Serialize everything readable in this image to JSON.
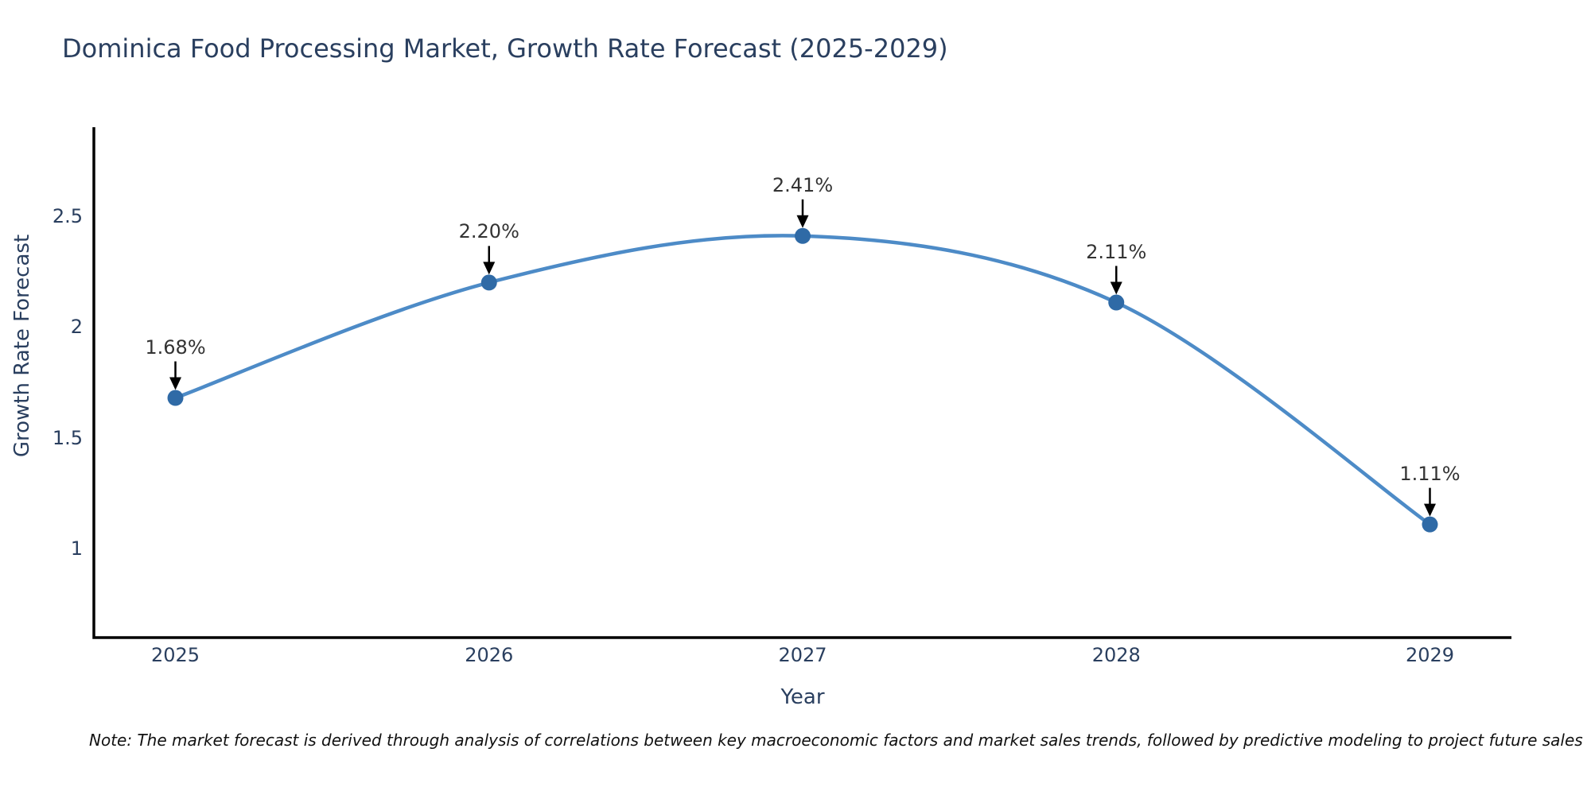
{
  "note": "Note: The market forecast is derived through analysis of correlations between key macroeconomic factors and market sales trends, followed by predictive modeling to project future sales",
  "chart_data": {
    "type": "line",
    "line_shape": "spline",
    "title": "Dominica Food Processing Market, Growth Rate Forecast (2025-2029)",
    "xlabel": "Year",
    "ylabel": "Growth Rate Forecast",
    "x": [
      2025,
      2026,
      2027,
      2028,
      2029
    ],
    "values": [
      1.68,
      2.2,
      2.41,
      2.11,
      1.11
    ],
    "point_labels": [
      "1.68%",
      "2.20%",
      "2.41%",
      "2.11%",
      "1.11%"
    ],
    "xticks": [
      "2025",
      "2026",
      "2027",
      "2028",
      "2029"
    ],
    "yticks": [
      2.5,
      2,
      1.5,
      1
    ],
    "ytick_labels": [
      "2.5",
      "2",
      "1.5",
      "1"
    ],
    "xlim": [
      2024.74,
      2029.26
    ],
    "ylim": [
      0.6,
      2.9
    ],
    "grid": false,
    "legend": "none",
    "annotation_style": "text-above-with-down-arrow",
    "colors": {
      "line": "#4d8bc7",
      "marker": "#2f6aa6",
      "axis": "#000000",
      "arrow": "#000000",
      "axis_text": "#2a3f5f",
      "annotation_text": "#333333"
    }
  }
}
